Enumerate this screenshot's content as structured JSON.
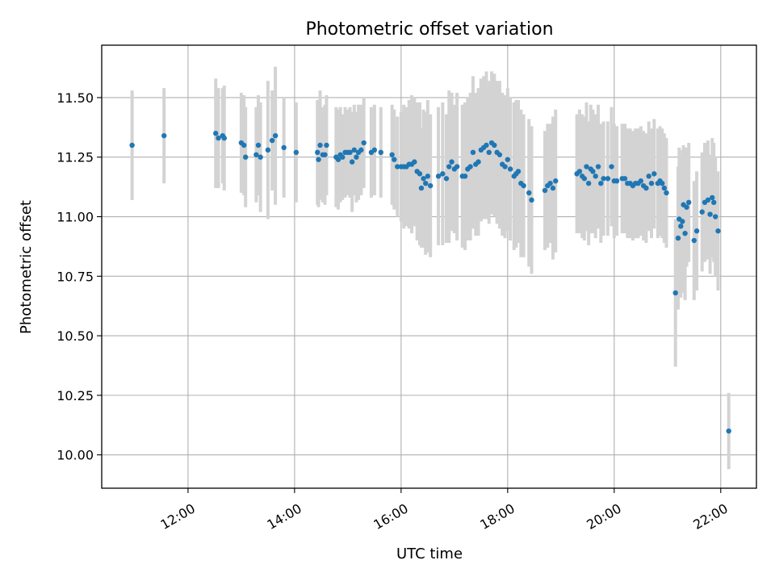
{
  "chart_data": {
    "type": "scatter",
    "title": "Photometric offset variation",
    "xlabel": "UTC time",
    "ylabel": "Photometric offset",
    "x_unit": "hours UTC",
    "xlim": [
      10.38,
      22.67
    ],
    "ylim": [
      9.86,
      11.72
    ],
    "grid": true,
    "x_ticks": [
      {
        "value": 12,
        "label": "12:00"
      },
      {
        "value": 14,
        "label": "14:00"
      },
      {
        "value": 16,
        "label": "16:00"
      },
      {
        "value": 18,
        "label": "18:00"
      },
      {
        "value": 20,
        "label": "20:00"
      },
      {
        "value": 22,
        "label": "22:00"
      }
    ],
    "y_ticks": [
      {
        "value": 10.0,
        "label": "10.00"
      },
      {
        "value": 10.25,
        "label": "10.25"
      },
      {
        "value": 10.5,
        "label": "10.50"
      },
      {
        "value": 10.75,
        "label": "10.75"
      },
      {
        "value": 11.0,
        "label": "11.00"
      },
      {
        "value": 11.25,
        "label": "11.25"
      },
      {
        "value": 11.5,
        "label": "11.50"
      }
    ],
    "colors": {
      "point": "#1f77b4",
      "errorbar": "#d3d3d3",
      "grid": "#b0b0b0"
    },
    "points": [
      [
        10.95,
        11.3,
        0.23
      ],
      [
        11.55,
        11.34,
        0.2
      ],
      [
        12.52,
        11.35,
        0.23
      ],
      [
        12.57,
        11.33,
        0.21
      ],
      [
        12.65,
        11.34,
        0.2
      ],
      [
        12.68,
        11.33,
        0.22
      ],
      [
        13.0,
        11.31,
        0.21
      ],
      [
        13.05,
        11.3,
        0.21
      ],
      [
        13.08,
        11.25,
        0.21
      ],
      [
        13.28,
        11.26,
        0.2
      ],
      [
        13.32,
        11.3,
        0.21
      ],
      [
        13.36,
        11.25,
        0.23
      ],
      [
        13.5,
        11.28,
        0.29
      ],
      [
        13.58,
        11.32,
        0.21
      ],
      [
        13.64,
        11.34,
        0.29
      ],
      [
        13.8,
        11.29,
        0.21
      ],
      [
        14.03,
        11.27,
        0.21
      ],
      [
        14.43,
        11.27,
        0.22
      ],
      [
        14.45,
        11.24,
        0.2
      ],
      [
        14.48,
        11.3,
        0.23
      ],
      [
        14.53,
        11.26,
        0.2
      ],
      [
        14.57,
        11.26,
        0.21
      ],
      [
        14.6,
        11.3,
        0.21
      ],
      [
        14.78,
        11.25,
        0.21
      ],
      [
        14.82,
        11.24,
        0.21
      ],
      [
        14.86,
        11.26,
        0.2
      ],
      [
        14.9,
        11.25,
        0.18
      ],
      [
        14.95,
        11.27,
        0.19
      ],
      [
        15.0,
        11.27,
        0.18
      ],
      [
        15.04,
        11.27,
        0.19
      ],
      [
        15.08,
        11.23,
        0.21
      ],
      [
        15.12,
        11.28,
        0.19
      ],
      [
        15.16,
        11.25,
        0.19
      ],
      [
        15.2,
        11.27,
        0.2
      ],
      [
        15.25,
        11.28,
        0.19
      ],
      [
        15.3,
        11.31,
        0.19
      ],
      [
        15.44,
        11.27,
        0.19
      ],
      [
        15.5,
        11.28,
        0.19
      ],
      [
        15.62,
        11.27,
        0.19
      ],
      [
        15.83,
        11.26,
        0.21
      ],
      [
        15.87,
        11.24,
        0.21
      ],
      [
        15.93,
        11.21,
        0.21
      ],
      [
        16.0,
        11.21,
        0.23
      ],
      [
        16.05,
        11.21,
        0.26
      ],
      [
        16.1,
        11.21,
        0.25
      ],
      [
        16.15,
        11.22,
        0.27
      ],
      [
        16.2,
        11.22,
        0.29
      ],
      [
        16.25,
        11.23,
        0.27
      ],
      [
        16.3,
        11.19,
        0.29
      ],
      [
        16.35,
        11.18,
        0.3
      ],
      [
        16.38,
        11.12,
        0.25
      ],
      [
        16.42,
        11.16,
        0.29
      ],
      [
        16.46,
        11.14,
        0.3
      ],
      [
        16.5,
        11.17,
        0.32
      ],
      [
        16.55,
        11.13,
        0.3
      ],
      [
        16.7,
        11.17,
        0.29
      ],
      [
        16.78,
        11.18,
        0.3
      ],
      [
        16.85,
        11.16,
        0.27
      ],
      [
        16.9,
        11.21,
        0.32
      ],
      [
        16.95,
        11.23,
        0.29
      ],
      [
        17.0,
        11.2,
        0.27
      ],
      [
        17.05,
        11.21,
        0.31
      ],
      [
        17.15,
        11.17,
        0.3
      ],
      [
        17.2,
        11.17,
        0.31
      ],
      [
        17.25,
        11.2,
        0.3
      ],
      [
        17.3,
        11.21,
        0.31
      ],
      [
        17.35,
        11.27,
        0.32
      ],
      [
        17.4,
        11.22,
        0.3
      ],
      [
        17.45,
        11.23,
        0.31
      ],
      [
        17.5,
        11.28,
        0.3
      ],
      [
        17.55,
        11.29,
        0.3
      ],
      [
        17.6,
        11.3,
        0.31
      ],
      [
        17.65,
        11.27,
        0.3
      ],
      [
        17.7,
        11.31,
        0.3
      ],
      [
        17.75,
        11.3,
        0.3
      ],
      [
        17.8,
        11.27,
        0.3
      ],
      [
        17.85,
        11.26,
        0.31
      ],
      [
        17.9,
        11.22,
        0.3
      ],
      [
        17.95,
        11.21,
        0.3
      ],
      [
        18.0,
        11.24,
        0.3
      ],
      [
        18.05,
        11.2,
        0.3
      ],
      [
        18.12,
        11.17,
        0.31
      ],
      [
        18.16,
        11.18,
        0.31
      ],
      [
        18.2,
        11.19,
        0.3
      ],
      [
        18.25,
        11.14,
        0.31
      ],
      [
        18.3,
        11.13,
        0.3
      ],
      [
        18.4,
        11.1,
        0.31
      ],
      [
        18.45,
        11.07,
        0.31
      ],
      [
        18.7,
        11.11,
        0.25
      ],
      [
        18.75,
        11.13,
        0.26
      ],
      [
        18.8,
        11.14,
        0.25
      ],
      [
        18.85,
        11.12,
        0.3
      ],
      [
        18.9,
        11.15,
        0.3
      ],
      [
        19.3,
        11.18,
        0.25
      ],
      [
        19.35,
        11.19,
        0.26
      ],
      [
        19.4,
        11.17,
        0.26
      ],
      [
        19.44,
        11.16,
        0.26
      ],
      [
        19.48,
        11.21,
        0.27
      ],
      [
        19.52,
        11.14,
        0.26
      ],
      [
        19.56,
        11.2,
        0.27
      ],
      [
        19.6,
        11.19,
        0.26
      ],
      [
        19.65,
        11.17,
        0.26
      ],
      [
        19.7,
        11.21,
        0.26
      ],
      [
        19.75,
        11.14,
        0.25
      ],
      [
        19.8,
        11.16,
        0.24
      ],
      [
        19.88,
        11.16,
        0.24
      ],
      [
        19.95,
        11.21,
        0.25
      ],
      [
        20.0,
        11.15,
        0.24
      ],
      [
        20.05,
        11.15,
        0.23
      ],
      [
        20.15,
        11.16,
        0.23
      ],
      [
        20.2,
        11.16,
        0.23
      ],
      [
        20.25,
        11.14,
        0.23
      ],
      [
        20.3,
        11.14,
        0.23
      ],
      [
        20.35,
        11.13,
        0.23
      ],
      [
        20.4,
        11.14,
        0.23
      ],
      [
        20.45,
        11.14,
        0.23
      ],
      [
        20.5,
        11.15,
        0.23
      ],
      [
        20.55,
        11.13,
        0.23
      ],
      [
        20.6,
        11.12,
        0.23
      ],
      [
        20.65,
        11.17,
        0.23
      ],
      [
        20.7,
        11.14,
        0.23
      ],
      [
        20.75,
        11.18,
        0.23
      ],
      [
        20.82,
        11.14,
        0.23
      ],
      [
        20.86,
        11.15,
        0.23
      ],
      [
        20.9,
        11.14,
        0.23
      ],
      [
        20.94,
        11.12,
        0.23
      ],
      [
        20.98,
        11.1,
        0.23
      ],
      [
        21.15,
        10.68,
        0.31
      ],
      [
        21.2,
        10.91,
        0.3
      ],
      [
        21.22,
        10.99,
        0.3
      ],
      [
        21.25,
        10.96,
        0.3
      ],
      [
        21.28,
        10.98,
        0.3
      ],
      [
        21.3,
        11.05,
        0.25
      ],
      [
        21.33,
        10.93,
        0.28
      ],
      [
        21.36,
        11.04,
        0.25
      ],
      [
        21.4,
        11.06,
        0.25
      ],
      [
        21.5,
        10.9,
        0.25
      ],
      [
        21.55,
        10.94,
        0.25
      ],
      [
        21.65,
        11.02,
        0.25
      ],
      [
        21.7,
        11.06,
        0.25
      ],
      [
        21.76,
        11.07,
        0.25
      ],
      [
        21.8,
        11.01,
        0.25
      ],
      [
        21.84,
        11.08,
        0.25
      ],
      [
        21.87,
        11.06,
        0.25
      ],
      [
        21.9,
        11.0,
        0.25
      ],
      [
        21.95,
        10.94,
        0.25
      ],
      [
        22.15,
        10.1,
        0.16
      ]
    ]
  }
}
